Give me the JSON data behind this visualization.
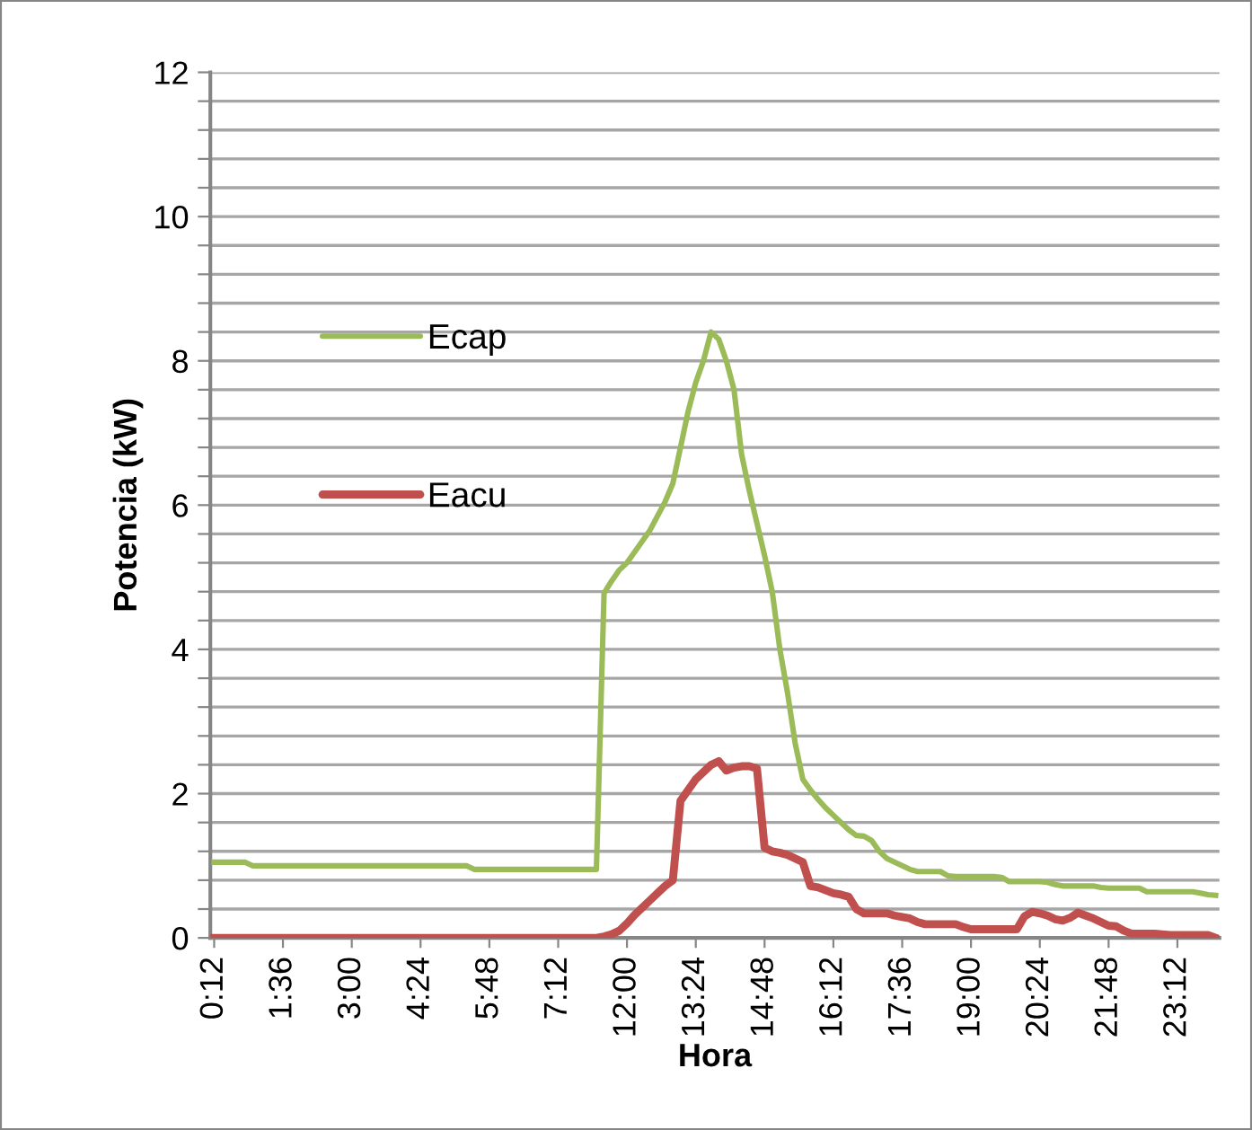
{
  "chart_data": {
    "type": "line",
    "xlabel": "Hora",
    "ylabel": "Potencia (kW)",
    "categories": [
      "0:12",
      null,
      null,
      null,
      null,
      null,
      null,
      null,
      null,
      "1:36",
      null,
      null,
      null,
      null,
      null,
      null,
      null,
      null,
      "3:00",
      null,
      null,
      null,
      null,
      null,
      null,
      null,
      null,
      "4:24",
      null,
      null,
      null,
      null,
      null,
      null,
      null,
      null,
      "5:48",
      null,
      null,
      null,
      null,
      null,
      null,
      null,
      null,
      "7:12",
      null,
      null,
      null,
      null,
      null,
      null,
      null,
      null,
      "12:00",
      null,
      null,
      null,
      null,
      null,
      null,
      null,
      null,
      "13:24",
      null,
      null,
      null,
      null,
      null,
      null,
      null,
      null,
      "14:48",
      null,
      null,
      null,
      null,
      null,
      null,
      null,
      null,
      "16:12",
      null,
      null,
      null,
      null,
      null,
      null,
      null,
      null,
      "17:36",
      null,
      null,
      null,
      null,
      null,
      null,
      null,
      null,
      "19:00",
      null,
      null,
      null,
      null,
      null,
      null,
      null,
      null,
      "20:24",
      null,
      null,
      null,
      null,
      null,
      null,
      null,
      null,
      "21:48",
      null,
      null,
      null,
      null,
      null,
      null,
      null,
      null,
      "23:12",
      null,
      null,
      null,
      null,
      null
    ],
    "series": [
      {
        "name": "Ecap",
        "color": "#9bbb59",
        "values": [
          1.05,
          1.05,
          1.05,
          1.05,
          1.05,
          1.0,
          1.0,
          1.0,
          1.0,
          1.0,
          1.0,
          1.0,
          1.0,
          1.0,
          1.0,
          1.0,
          1.0,
          1.0,
          1.0,
          1.0,
          1.0,
          1.0,
          1.0,
          1.0,
          1.0,
          1.0,
          1.0,
          1.0,
          1.0,
          1.0,
          1.0,
          1.0,
          1.0,
          1.0,
          0.95,
          0.95,
          0.95,
          0.95,
          0.95,
          0.95,
          0.95,
          0.95,
          0.95,
          0.95,
          0.95,
          0.95,
          0.95,
          0.95,
          0.95,
          0.95,
          0.95,
          4.78,
          4.95,
          5.1,
          5.2,
          5.35,
          5.5,
          5.65,
          5.85,
          6.05,
          6.3,
          6.8,
          7.3,
          7.7,
          8.0,
          8.4,
          8.3,
          8.0,
          7.6,
          6.7,
          6.2,
          5.75,
          5.3,
          4.8,
          4.0,
          3.4,
          2.7,
          2.2,
          2.05,
          1.92,
          1.8,
          1.7,
          1.6,
          1.5,
          1.42,
          1.41,
          1.35,
          1.2,
          1.1,
          1.05,
          1.0,
          0.95,
          0.92,
          0.92,
          0.92,
          0.92,
          0.86,
          0.85,
          0.85,
          0.85,
          0.85,
          0.85,
          0.85,
          0.84,
          0.78,
          0.78,
          0.78,
          0.78,
          0.78,
          0.77,
          0.74,
          0.72,
          0.72,
          0.72,
          0.72,
          0.72,
          0.7,
          0.69,
          0.69,
          0.69,
          0.69,
          0.69,
          0.64,
          0.64,
          0.64,
          0.64,
          0.64,
          0.64,
          0.64,
          0.62,
          0.6,
          0.59
        ]
      },
      {
        "name": "Eacu",
        "color": "#c0504d",
        "values": [
          0.0,
          0.0,
          0.0,
          0.0,
          0.0,
          0.0,
          0.0,
          0.0,
          0.0,
          0.0,
          0.0,
          0.0,
          0.0,
          0.0,
          0.0,
          0.0,
          0.0,
          0.0,
          0.0,
          0.0,
          0.0,
          0.0,
          0.0,
          0.0,
          0.0,
          0.0,
          0.0,
          0.0,
          0.0,
          0.0,
          0.0,
          0.0,
          0.0,
          0.0,
          0.0,
          0.0,
          0.0,
          0.0,
          0.0,
          0.0,
          0.0,
          0.0,
          0.0,
          0.0,
          0.0,
          0.0,
          0.0,
          0.0,
          0.0,
          0.0,
          0.0,
          0.02,
          0.05,
          0.1,
          0.2,
          0.32,
          0.42,
          0.52,
          0.62,
          0.72,
          0.8,
          1.9,
          2.05,
          2.2,
          2.3,
          2.4,
          2.45,
          2.32,
          2.36,
          2.38,
          2.38,
          2.35,
          1.25,
          1.2,
          1.18,
          1.15,
          1.1,
          1.05,
          0.72,
          0.7,
          0.66,
          0.62,
          0.6,
          0.57,
          0.4,
          0.34,
          0.34,
          0.34,
          0.34,
          0.31,
          0.29,
          0.27,
          0.22,
          0.19,
          0.19,
          0.19,
          0.19,
          0.19,
          0.15,
          0.12,
          0.12,
          0.12,
          0.12,
          0.12,
          0.12,
          0.12,
          0.3,
          0.36,
          0.34,
          0.31,
          0.26,
          0.24,
          0.28,
          0.35,
          0.31,
          0.27,
          0.22,
          0.17,
          0.16,
          0.1,
          0.06,
          0.06,
          0.06,
          0.06,
          0.05,
          0.04,
          0.04,
          0.04,
          0.04,
          0.04,
          0.04,
          0.0
        ]
      }
    ],
    "ylim": [
      0,
      12
    ],
    "yticks": [
      0,
      {
        "value": 0.4,
        "label": null
      },
      {
        "value": 0.8,
        "label": null
      },
      {
        "value": 1.2,
        "label": null
      },
      {
        "value": 1.6,
        "label": null
      },
      2,
      {
        "value": 2.4,
        "label": null
      },
      {
        "value": 2.8,
        "label": null
      },
      {
        "value": 3.2,
        "label": null
      },
      {
        "value": 3.6,
        "label": null
      },
      4,
      {
        "value": 4.4,
        "label": null
      },
      {
        "value": 4.8,
        "label": null
      },
      {
        "value": 5.2,
        "label": null
      },
      {
        "value": 5.6,
        "label": null
      },
      6,
      {
        "value": 6.4,
        "label": null
      },
      {
        "value": 6.8,
        "label": null
      },
      {
        "value": 7.2,
        "label": null
      },
      {
        "value": 7.6,
        "label": null
      },
      8,
      {
        "value": 8.4,
        "label": null
      },
      {
        "value": 8.8,
        "label": null
      },
      {
        "value": 9.2,
        "label": null
      },
      {
        "value": 9.6,
        "label": null
      },
      10,
      {
        "value": 10.4,
        "label": null
      },
      {
        "value": 10.8,
        "label": null
      },
      {
        "value": 11.2,
        "label": null
      },
      {
        "value": 11.6,
        "label": null
      },
      12
    ],
    "grid": "y",
    "legend": "left",
    "marker": "none",
    "line_style": "solid"
  }
}
